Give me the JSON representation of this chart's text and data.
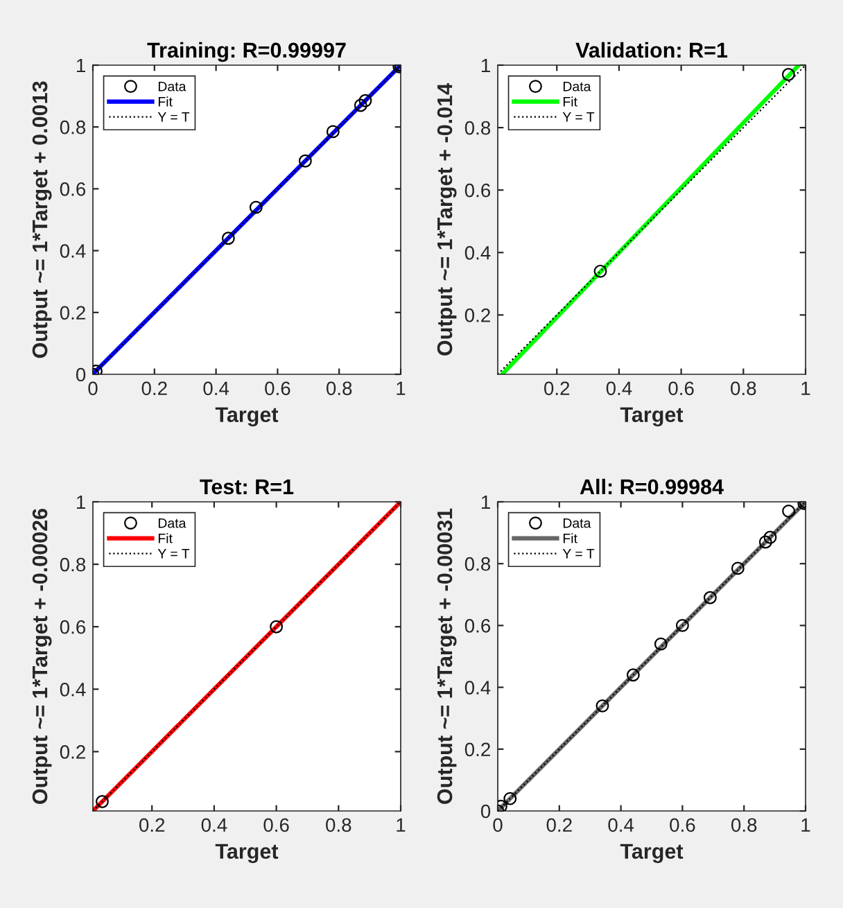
{
  "chart_data": [
    {
      "type": "scatter",
      "title": "Training: R=0.99997",
      "xlabel": "Target",
      "ylabel": "Output ~= 1*Target + 0.0013",
      "xlim": [
        0,
        1
      ],
      "ylim": [
        0,
        1
      ],
      "xticks": [
        0,
        0.2,
        0.4,
        0.6,
        0.8,
        1
      ],
      "yticks": [
        0,
        0.2,
        0.4,
        0.6,
        0.8,
        1
      ],
      "grid": false,
      "legend": "top left",
      "series": [
        {
          "name": "Data",
          "type": "scatter",
          "marker": "circle",
          "color": "#000000",
          "x": [
            0,
            0.01,
            0.44,
            0.53,
            0.69,
            0.78,
            0.87,
            0.885,
            0.995,
            1
          ],
          "values": [
            0,
            0.01,
            0.44,
            0.54,
            0.69,
            0.785,
            0.87,
            0.885,
            0.995,
            1
          ]
        },
        {
          "name": "Fit",
          "type": "line",
          "color": "#0000ff",
          "x": [
            0,
            1
          ],
          "values": [
            0.001,
            1
          ]
        },
        {
          "name": "Y = T",
          "type": "line",
          "line_style": "dotted",
          "color": "#000000",
          "x": [
            0,
            1
          ],
          "values": [
            0,
            1
          ]
        }
      ]
    },
    {
      "type": "scatter",
      "title": "Validation: R=1",
      "xlabel": "Target",
      "ylabel": "Output ~= 1*Target + -0.014",
      "xlim": [
        0.01,
        1
      ],
      "ylim": [
        0.01,
        1
      ],
      "xticks": [
        0.2,
        0.4,
        0.6,
        0.8,
        1
      ],
      "yticks": [
        0.2,
        0.4,
        0.6,
        0.8,
        1
      ],
      "grid": false,
      "legend": "top left",
      "series": [
        {
          "name": "Data",
          "type": "scatter",
          "marker": "circle",
          "color": "#000000",
          "x": [
            0.34,
            0.945
          ],
          "values": [
            0.34,
            0.97
          ]
        },
        {
          "name": "Fit",
          "type": "line",
          "color": "#00ff00",
          "x": [
            0.024,
            0.978
          ],
          "values": [
            0.01,
            1
          ]
        },
        {
          "name": "Y = T",
          "type": "line",
          "line_style": "dotted",
          "color": "#000000",
          "x": [
            0.01,
            1
          ],
          "values": [
            0.01,
            1
          ]
        }
      ]
    },
    {
      "type": "scatter",
      "title": "Test: R=1",
      "xlabel": "Target",
      "ylabel": "Output ~= 1*Target + -0.00026",
      "xlim": [
        0.01,
        1
      ],
      "ylim": [
        0.01,
        1
      ],
      "xticks": [
        0.2,
        0.4,
        0.6,
        0.8,
        1
      ],
      "yticks": [
        0.2,
        0.4,
        0.6,
        0.8,
        1
      ],
      "grid": false,
      "legend": "top left",
      "series": [
        {
          "name": "Data",
          "type": "scatter",
          "marker": "circle",
          "color": "#000000",
          "x": [
            0.04,
            0.6
          ],
          "values": [
            0.04,
            0.6
          ]
        },
        {
          "name": "Fit",
          "type": "line",
          "color": "#ff0000",
          "x": [
            0.01,
            1
          ],
          "values": [
            0.01,
            1
          ]
        },
        {
          "name": "Y = T",
          "type": "line",
          "line_style": "dotted",
          "color": "#000000",
          "x": [
            0.01,
            1
          ],
          "values": [
            0.01,
            1
          ]
        }
      ]
    },
    {
      "type": "scatter",
      "title": "All: R=0.99984",
      "xlabel": "Target",
      "ylabel": "Output ~= 1*Target + -0.00031",
      "xlim": [
        0,
        1
      ],
      "ylim": [
        0,
        1
      ],
      "xticks": [
        0,
        0.2,
        0.4,
        0.6,
        0.8,
        1
      ],
      "yticks": [
        0,
        0.2,
        0.4,
        0.6,
        0.8,
        1
      ],
      "grid": false,
      "legend": "top left",
      "series": [
        {
          "name": "Data",
          "type": "scatter",
          "marker": "circle",
          "color": "#000000",
          "x": [
            0,
            0.01,
            0.04,
            0.34,
            0.44,
            0.53,
            0.6,
            0.69,
            0.78,
            0.87,
            0.885,
            0.945,
            0.995,
            1
          ],
          "values": [
            0,
            0.015,
            0.04,
            0.34,
            0.44,
            0.54,
            0.6,
            0.69,
            0.785,
            0.87,
            0.885,
            0.97,
            0.995,
            1
          ]
        },
        {
          "name": "Fit",
          "type": "line",
          "color": "#666666",
          "x": [
            0,
            1
          ],
          "values": [
            0,
            1
          ]
        },
        {
          "name": "Y = T",
          "type": "line",
          "line_style": "dotted",
          "color": "#000000",
          "x": [
            0,
            1
          ],
          "values": [
            0,
            1
          ]
        }
      ]
    }
  ]
}
